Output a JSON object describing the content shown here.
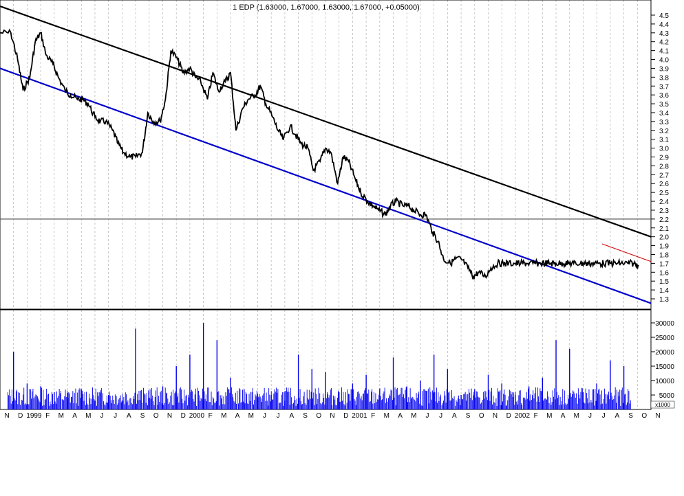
{
  "chart_data": [
    {
      "type": "line",
      "title": "1 EDP (1.63000, 1.67000, 1.63000, 1.67000, +0.05000)",
      "ylim": [
        1.2,
        4.6
      ],
      "y_ticks": [
        "1.3",
        "1.4",
        "1.5",
        "1.6",
        "1.7",
        "1.8",
        "1.9",
        "2.0",
        "2.1",
        "2.2",
        "2.3",
        "2.4",
        "2.5",
        "2.6",
        "2.7",
        "2.8",
        "2.9",
        "3.0",
        "3.1",
        "3.2",
        "3.3",
        "3.4",
        "3.5",
        "3.6",
        "3.7",
        "3.8",
        "3.9",
        "4.0",
        "4.1",
        "4.2",
        "4.3",
        "4.4",
        "4.5"
      ],
      "x_range": [
        0,
        48
      ],
      "grid": "vertical-dashed",
      "series": [
        {
          "x": [
            0,
            0.8,
            1.3,
            1.7,
            2.2,
            2.6,
            3.0,
            3.4,
            3.9,
            4.3,
            4.8,
            5.2,
            5.7,
            6.1,
            6.5,
            7.0,
            7.4,
            7.8,
            8.3,
            8.7,
            9.1,
            9.6,
            10.0,
            10.5,
            10.9,
            11.3,
            11.8,
            12.2,
            12.6,
            13.1,
            13.5,
            14.0,
            14.4,
            14.8,
            15.3,
            15.7,
            16.1,
            16.6,
            17.0,
            17.4,
            17.9,
            18.3,
            18.8,
            19.2,
            19.6,
            20.1,
            20.5,
            20.9,
            21.4,
            21.8,
            22.2,
            22.7,
            23.1,
            23.6,
            24.0,
            24.4,
            24.9,
            25.3,
            25.7,
            26.2,
            26.6,
            27.1,
            27.5,
            27.9,
            28.4,
            28.8,
            29.2,
            29.7,
            30.1,
            30.5,
            31.0,
            31.4,
            31.9,
            32.3,
            32.7,
            33.2,
            33.6,
            34.0,
            34.5,
            34.9,
            35.3,
            35.8,
            36.2,
            36.7,
            37.1,
            37.5,
            38.0,
            38.4,
            38.8,
            39.3,
            39.7,
            40.2,
            40.6,
            41.0,
            41.5,
            41.9,
            42.3,
            42.8,
            43.2,
            43.6,
            44.1,
            44.5,
            45.0,
            45.4,
            45.8,
            46.3,
            46.7,
            47.1
          ],
          "y": [
            4.3,
            4.3,
            4.0,
            3.65,
            3.8,
            4.2,
            4.3,
            4.05,
            3.95,
            3.8,
            3.65,
            3.6,
            3.55,
            3.55,
            3.5,
            3.35,
            3.3,
            3.3,
            3.2,
            3.05,
            2.95,
            2.9,
            2.9,
            2.95,
            3.4,
            3.3,
            3.3,
            3.55,
            4.1,
            4.0,
            3.85,
            3.9,
            3.8,
            3.75,
            3.55,
            3.85,
            3.65,
            3.75,
            3.85,
            3.2,
            3.45,
            3.55,
            3.6,
            3.7,
            3.5,
            3.35,
            3.2,
            3.1,
            3.25,
            3.15,
            3.05,
            3.0,
            2.75,
            2.85,
            3.0,
            2.95,
            2.6,
            2.9,
            2.85,
            2.65,
            2.5,
            2.4,
            2.35,
            2.3,
            2.25,
            2.35,
            2.4,
            2.35,
            2.35,
            2.3,
            2.25,
            2.25,
            2.05,
            1.95,
            1.75,
            1.7,
            1.75,
            1.75,
            1.65,
            1.55,
            1.6,
            1.55,
            1.65,
            1.7,
            1.7,
            1.7,
            1.7,
            1.7,
            1.7,
            1.7,
            1.7,
            1.7,
            1.7,
            1.7,
            1.7,
            1.7,
            1.7,
            1.7,
            1.7,
            1.7,
            1.7,
            1.7,
            1.7,
            1.7,
            1.7,
            1.7,
            1.7,
            1.67
          ]
        }
      ]
    },
    {
      "type": "bar",
      "ylim": [
        0,
        32000
      ],
      "y_ticks": [
        "5000",
        "10000",
        "15000",
        "20000",
        "25000",
        "30000"
      ],
      "unit_label": "x1000",
      "series": [
        {
          "x": [
            1.0,
            2.0,
            3.0,
            4.0,
            5.0,
            6.0,
            7.0,
            8.0,
            9.0,
            10.0,
            11.0,
            12.0,
            13.0,
            14.0,
            15.0,
            16.0,
            17.0,
            18.0,
            19.0,
            20.0,
            21.0,
            22.0,
            23.0,
            24.0,
            25.0,
            26.0,
            27.0,
            28.0,
            29.0,
            30.0,
            31.0,
            32.0,
            33.0,
            34.0,
            35.0,
            36.0,
            37.0,
            38.0,
            39.0,
            40.0,
            41.0,
            42.0,
            43.0,
            44.0,
            45.0,
            46.0
          ],
          "values": [
            20000,
            9000,
            8000,
            6000,
            4000,
            7000,
            3000,
            5000,
            3000,
            28000,
            4000,
            8000,
            15000,
            19000,
            30000,
            24000,
            11000,
            7000,
            4000,
            5000,
            3000,
            19000,
            14000,
            13000,
            6000,
            9000,
            12000,
            7000,
            18000,
            8000,
            10000,
            19000,
            14000,
            5000,
            7000,
            12000,
            9000,
            5000,
            8000,
            11000,
            24000,
            21000,
            6000,
            9000,
            17000,
            15000
          ]
        }
      ]
    }
  ],
  "x_axis_labels": [
    "N",
    "D",
    "1999",
    "F",
    "M",
    "A",
    "M",
    "J",
    "J",
    "A",
    "S",
    "O",
    "N",
    "D",
    "2000",
    "F",
    "M",
    "A",
    "M",
    "J",
    "J",
    "A",
    "S",
    "O",
    "N",
    "D",
    "2001",
    "F",
    "M",
    "A",
    "M",
    "J",
    "J",
    "A",
    "S",
    "O",
    "N",
    "D",
    "2002",
    "F",
    "M",
    "A",
    "M",
    "J",
    "J",
    "A",
    "S",
    "O",
    "N"
  ],
  "annotations": {
    "horizontal_level": 2.2,
    "upper_trend": [
      [
        0,
        4.6
      ],
      [
        48,
        2.0
      ]
    ],
    "lower_trend": [
      [
        0,
        3.9
      ],
      [
        48,
        1.25
      ]
    ],
    "colors": {
      "upper_trend": "#000000",
      "lower_trend": "#0000cc",
      "volume": "#0000ee",
      "price": "#000000",
      "red_trend": "#cc0000"
    }
  }
}
